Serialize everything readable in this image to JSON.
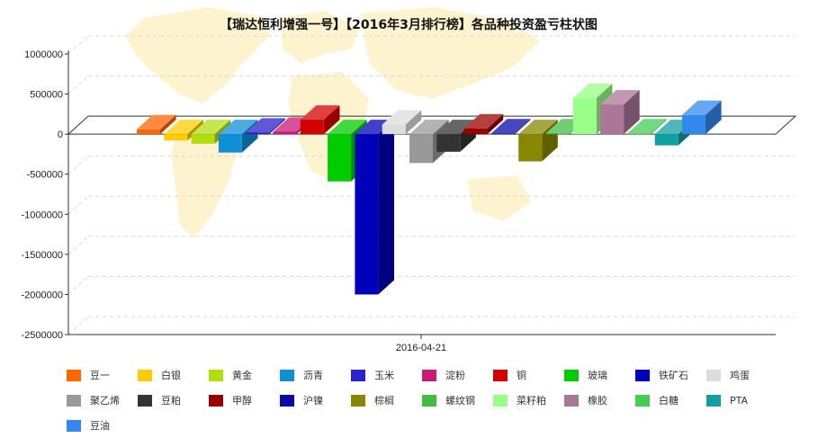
{
  "chart_data": {
    "type": "bar",
    "title": "【瑞达恒利增强一号】【2016年3月排行榜】各品种投资盈亏柱状图",
    "xlabel": "",
    "ylabel": "",
    "x_category": "2016-04-21",
    "ylim": [
      -2500000,
      1000000
    ],
    "y_ticks": [
      1000000,
      500000,
      0,
      -500000,
      -1000000,
      -1500000,
      -2000000,
      -2500000
    ],
    "grid": true,
    "legend_position": "bottom",
    "series": [
      {
        "name": "豆一",
        "value": 60000,
        "color": "#ff6600"
      },
      {
        "name": "白银",
        "value": -80000,
        "color": "#ffcc00"
      },
      {
        "name": "黄金",
        "value": -120000,
        "color": "#b2dd10"
      },
      {
        "name": "沥青",
        "value": -230000,
        "color": "#0f8fd6"
      },
      {
        "name": "玉米",
        "value": 20000,
        "color": "#2a22cc"
      },
      {
        "name": "淀粉",
        "value": 30000,
        "color": "#cc1877"
      },
      {
        "name": "铜",
        "value": 180000,
        "color": "#d40000"
      },
      {
        "name": "玻璃",
        "value": -590000,
        "color": "#00cc00"
      },
      {
        "name": "铁矿石",
        "value": -2000000,
        "color": "#0000bb"
      },
      {
        "name": "鸡蛋",
        "value": 120000,
        "color": "#dddddd"
      },
      {
        "name": "聚乙烯",
        "value": -360000,
        "color": "#999999"
      },
      {
        "name": "豆粕",
        "value": -220000,
        "color": "#333333"
      },
      {
        "name": "甲醇",
        "value": 70000,
        "color": "#990000"
      },
      {
        "name": "沪镍",
        "value": 10000,
        "color": "#0a0aaa"
      },
      {
        "name": "棕榈",
        "value": -340000,
        "color": "#888800"
      },
      {
        "name": "螺纹钢",
        "value": 10000,
        "color": "#44bb44"
      },
      {
        "name": "菜籽粕",
        "value": 450000,
        "color": "#99ff88"
      },
      {
        "name": "橡胶",
        "value": 370000,
        "color": "#aa7799"
      },
      {
        "name": "白糖",
        "value": 10000,
        "color": "#44cc55"
      },
      {
        "name": "PTA",
        "value": -140000,
        "color": "#11a0a0"
      },
      {
        "name": "豆油",
        "value": 240000,
        "color": "#3388ee"
      }
    ]
  }
}
